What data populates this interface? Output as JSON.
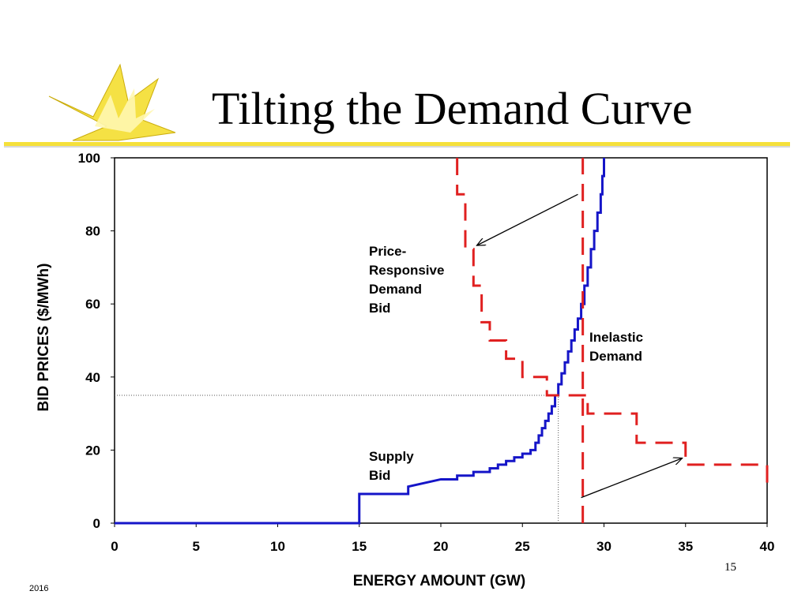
{
  "slide": {
    "title": "Tilting the Demand Curve",
    "page_number": "15",
    "year": "2016",
    "accent_color": "#f5e03a"
  },
  "chart_data": {
    "type": "line",
    "title": "",
    "xlabel": "ENERGY AMOUNT (GW)",
    "ylabel": "BID PRICES ($/MWh)",
    "xlim": [
      0,
      40
    ],
    "ylim": [
      0,
      100
    ],
    "x_ticks": [
      0,
      5,
      10,
      15,
      20,
      25,
      30,
      35,
      40
    ],
    "y_ticks": [
      0,
      20,
      40,
      60,
      80,
      100
    ],
    "grid": false,
    "series": [
      {
        "name": "Supply Bid",
        "style": "solid",
        "color": "#1515c8",
        "points": [
          [
            0,
            0
          ],
          [
            15,
            0
          ],
          [
            15,
            8
          ],
          [
            18,
            8
          ],
          [
            18,
            10
          ],
          [
            20,
            12
          ],
          [
            21,
            12
          ],
          [
            21,
            13
          ],
          [
            22,
            13
          ],
          [
            22,
            14
          ],
          [
            23,
            14
          ],
          [
            23,
            15
          ],
          [
            23.5,
            15
          ],
          [
            23.5,
            16
          ],
          [
            24,
            16
          ],
          [
            24,
            17
          ],
          [
            24.5,
            17
          ],
          [
            24.5,
            18
          ],
          [
            25,
            18
          ],
          [
            25,
            19
          ],
          [
            25.5,
            19
          ],
          [
            25.5,
            20
          ],
          [
            25.8,
            20
          ],
          [
            25.8,
            22
          ],
          [
            26,
            22
          ],
          [
            26,
            24
          ],
          [
            26.2,
            24
          ],
          [
            26.2,
            26
          ],
          [
            26.4,
            26
          ],
          [
            26.4,
            28
          ],
          [
            26.6,
            28
          ],
          [
            26.6,
            30
          ],
          [
            26.8,
            30
          ],
          [
            26.8,
            32
          ],
          [
            27,
            32
          ],
          [
            27,
            35
          ],
          [
            27.2,
            35
          ],
          [
            27.2,
            38
          ],
          [
            27.4,
            38
          ],
          [
            27.4,
            41
          ],
          [
            27.6,
            41
          ],
          [
            27.6,
            44
          ],
          [
            27.8,
            44
          ],
          [
            27.8,
            47
          ],
          [
            28,
            47
          ],
          [
            28,
            50
          ],
          [
            28.2,
            50
          ],
          [
            28.2,
            53
          ],
          [
            28.4,
            53
          ],
          [
            28.4,
            56
          ],
          [
            28.6,
            56
          ],
          [
            28.6,
            60
          ],
          [
            28.8,
            60
          ],
          [
            28.8,
            65
          ],
          [
            29,
            65
          ],
          [
            29,
            70
          ],
          [
            29.2,
            70
          ],
          [
            29.2,
            75
          ],
          [
            29.4,
            75
          ],
          [
            29.4,
            80
          ],
          [
            29.6,
            80
          ],
          [
            29.6,
            85
          ],
          [
            29.8,
            85
          ],
          [
            29.8,
            90
          ],
          [
            29.9,
            90
          ],
          [
            29.9,
            95
          ],
          [
            30,
            95
          ],
          [
            30,
            100
          ]
        ]
      },
      {
        "name": "Price-Responsive Demand Bid",
        "style": "dashed",
        "color": "#e02020",
        "points": [
          [
            21,
            100
          ],
          [
            21,
            90
          ],
          [
            21.5,
            90
          ],
          [
            21.5,
            75
          ],
          [
            22,
            75
          ],
          [
            22,
            65
          ],
          [
            22.5,
            65
          ],
          [
            22.5,
            55
          ],
          [
            23,
            55
          ],
          [
            23,
            50
          ],
          [
            24,
            50
          ],
          [
            24,
            45
          ],
          [
            25,
            45
          ],
          [
            25,
            40
          ],
          [
            26.5,
            40
          ],
          [
            26.5,
            35
          ],
          [
            29,
            35
          ],
          [
            29,
            30
          ],
          [
            32,
            30
          ],
          [
            32,
            22
          ],
          [
            35,
            22
          ],
          [
            35,
            16
          ],
          [
            40,
            16
          ],
          [
            40,
            10
          ]
        ]
      },
      {
        "name": "Inelastic Demand",
        "style": "dashed",
        "color": "#e02020",
        "points": [
          [
            28.7,
            0
          ],
          [
            28.7,
            100
          ]
        ]
      }
    ],
    "reference_lines": [
      {
        "kind": "horizontal-dotted",
        "y": 35,
        "x_from": 0,
        "x_to": 27.2
      },
      {
        "kind": "vertical-dotted",
        "x": 27.2,
        "y_from": 0,
        "y_to": 35
      }
    ],
    "annotations": [
      {
        "text": [
          "Price-",
          "Responsive",
          "Demand",
          "Bid"
        ],
        "arrow_from": [
          28.4,
          90
        ],
        "arrow_to": [
          22.2,
          76
        ]
      },
      {
        "text": [
          "Inelastic",
          "Demand"
        ],
        "arrow_from": null,
        "arrow_to": null
      },
      {
        "text": [
          "Supply",
          "Bid"
        ],
        "arrow_from": null,
        "arrow_to": null
      },
      {
        "text": [],
        "arrow_from": [
          28.6,
          7
        ],
        "arrow_to": [
          34.8,
          17.8
        ]
      }
    ]
  }
}
